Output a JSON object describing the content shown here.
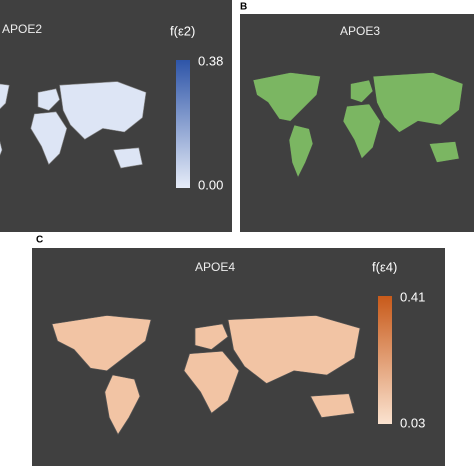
{
  "panels": [
    {
      "label": null,
      "title": "APOE2",
      "legend": {
        "title": "f(ε2)",
        "max": "0.38",
        "min": "0.00"
      }
    },
    {
      "label": "B",
      "title": "APOE3"
    },
    {
      "label": "C",
      "title": "APOE4",
      "legend": {
        "title": "f(ε4)",
        "max": "0.41",
        "min": "0.03"
      }
    }
  ]
}
